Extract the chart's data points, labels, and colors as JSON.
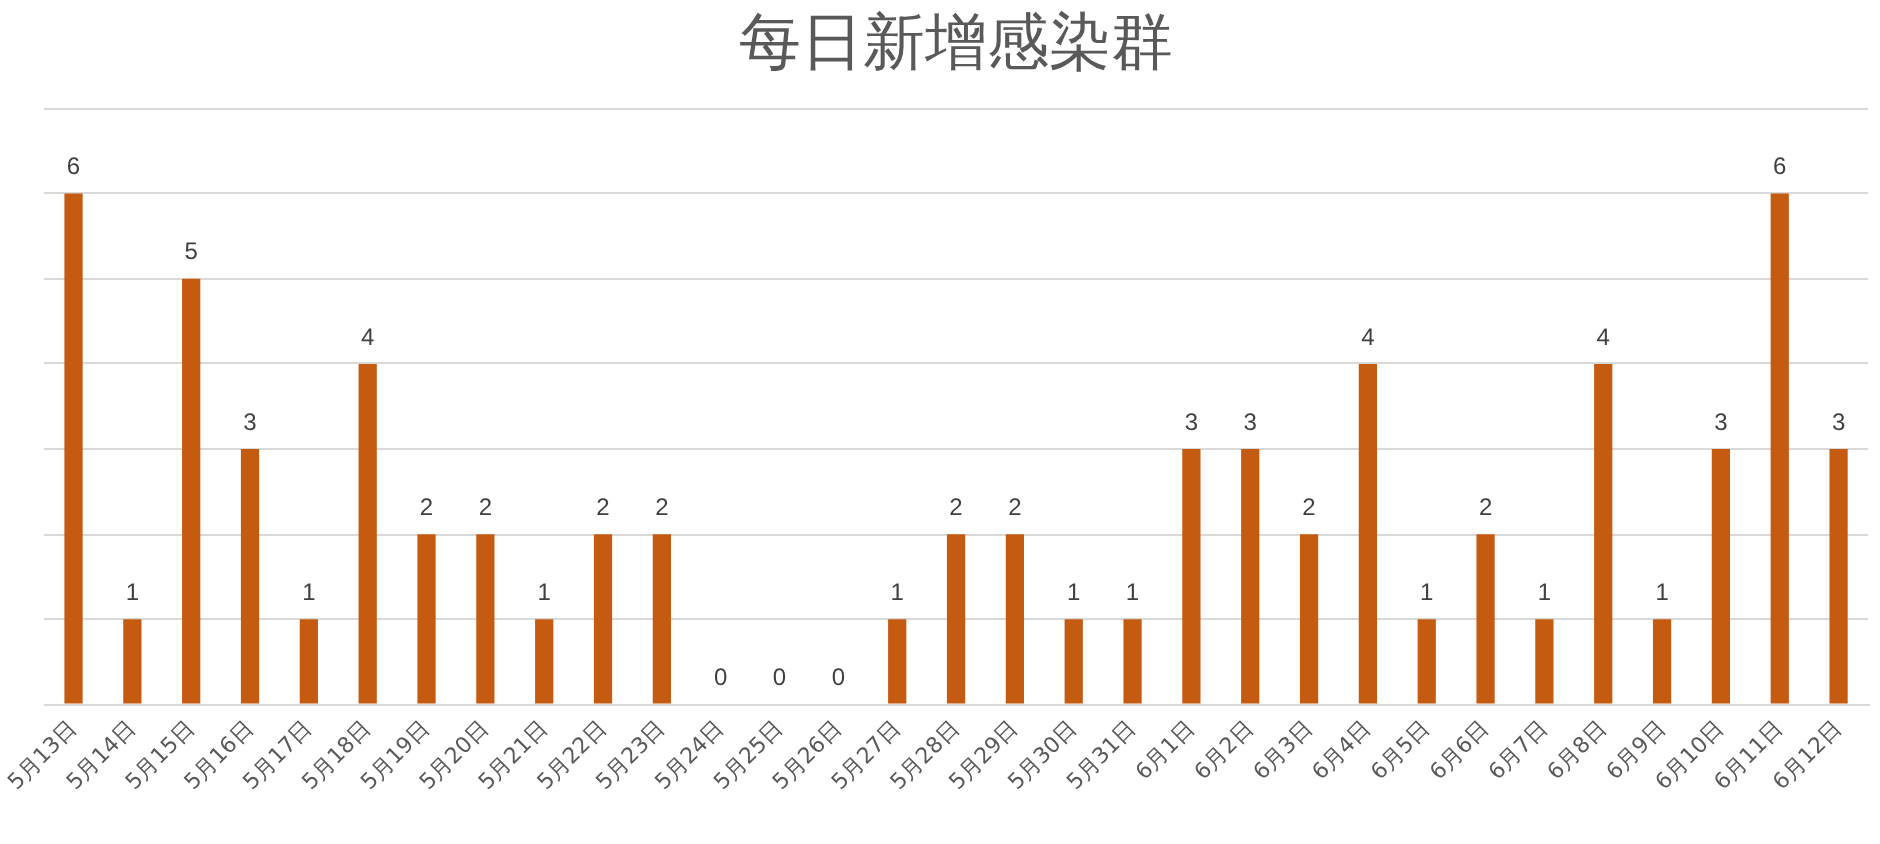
{
  "chart_data": {
    "type": "bar",
    "title": "每日新增感染群",
    "categories": [
      "5月13日",
      "5月14日",
      "5月15日",
      "5月16日",
      "5月17日",
      "5月18日",
      "5月19日",
      "5月20日",
      "5月21日",
      "5月22日",
      "5月23日",
      "5月24日",
      "5月25日",
      "5月26日",
      "5月27日",
      "5月28日",
      "5月29日",
      "5月30日",
      "5月31日",
      "6月1日",
      "6月2日",
      "6月3日",
      "6月4日",
      "6月5日",
      "6月6日",
      "6月7日",
      "6月8日",
      "6月9日",
      "6月10日",
      "6月11日",
      "6月12日"
    ],
    "values": [
      6,
      1,
      5,
      3,
      1,
      4,
      2,
      2,
      1,
      2,
      2,
      0,
      0,
      0,
      1,
      2,
      2,
      1,
      1,
      3,
      3,
      2,
      4,
      1,
      2,
      1,
      4,
      1,
      3,
      6,
      3
    ],
    "color": "#c55a11",
    "ylim": [
      0,
      7
    ],
    "yticks": [
      {
        "value": 0,
        "label": null
      },
      {
        "value": 1,
        "label": null
      },
      {
        "value": 2,
        "label": null
      },
      {
        "value": 3,
        "label": null
      },
      {
        "value": 4,
        "label": null
      },
      {
        "value": 5,
        "label": null
      },
      {
        "value": 6,
        "label": null
      },
      {
        "value": 7,
        "label": null
      }
    ],
    "tick_labels": "x",
    "grid": "y",
    "data_labels": true
  }
}
